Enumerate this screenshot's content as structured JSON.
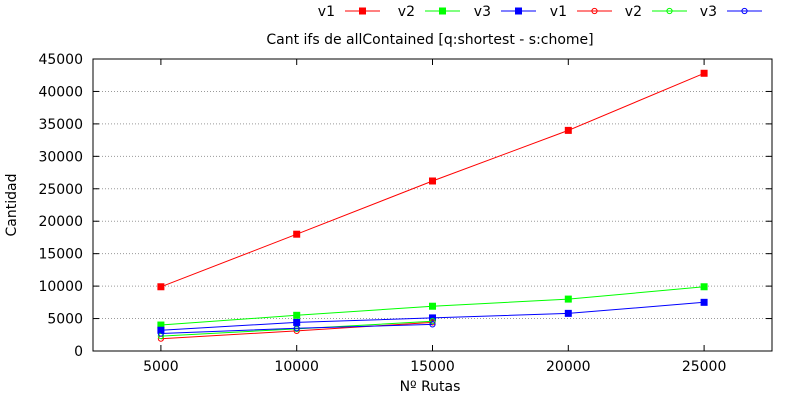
{
  "chart_data": {
    "type": "line",
    "title": "Cant ifs de allContained [q:shortest - s:chome]",
    "xlabel": "Nº Rutas",
    "ylabel": "Cantidad",
    "xlim": [
      2500,
      27500
    ],
    "ylim": [
      0,
      45000
    ],
    "x_ticks": [
      5000,
      10000,
      15000,
      20000,
      25000
    ],
    "y_ticks": [
      0,
      5000,
      10000,
      15000,
      20000,
      25000,
      30000,
      35000,
      40000,
      45000
    ],
    "grid": true,
    "legend_position": "top-right",
    "series": [
      {
        "name": "v1",
        "color": "#ff0000",
        "marker": "filled-square",
        "x": [
          5000,
          10000,
          15000,
          20000,
          25000
        ],
        "y": [
          9900,
          18000,
          26200,
          34000,
          42800
        ]
      },
      {
        "name": "v2",
        "color": "#00ff00",
        "marker": "filled-square",
        "x": [
          5000,
          10000,
          15000,
          20000,
          25000
        ],
        "y": [
          4000,
          5500,
          6900,
          8000,
          9900
        ]
      },
      {
        "name": "v3",
        "color": "#0000ff",
        "marker": "filled-square",
        "x": [
          5000,
          10000,
          15000,
          20000,
          25000
        ],
        "y": [
          3200,
          4400,
          5100,
          5800,
          7500
        ]
      },
      {
        "name": "v1",
        "color": "#ff0000",
        "marker": "open-circle",
        "x": [
          5000,
          10000,
          15000
        ],
        "y": [
          1900,
          3100,
          4400
        ]
      },
      {
        "name": "v2",
        "color": "#00ff00",
        "marker": "open-circle",
        "x": [
          5000,
          10000,
          15000
        ],
        "y": [
          2300,
          3400,
          4600
        ]
      },
      {
        "name": "v3",
        "color": "#0000ff",
        "marker": "open-circle",
        "x": [
          5000,
          10000,
          15000
        ],
        "y": [
          2700,
          3500,
          4100
        ]
      }
    ]
  }
}
